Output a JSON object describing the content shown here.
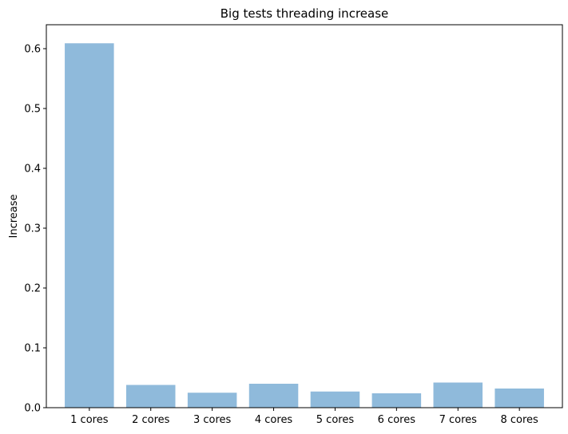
{
  "chart_data": {
    "type": "bar",
    "title": "Big tests threading increase",
    "xlabel": "",
    "ylabel": "Increase",
    "categories": [
      "1 cores",
      "2 cores",
      "3 cores",
      "4 cores",
      "5 cores",
      "6 cores",
      "7 cores",
      "8 cores"
    ],
    "values": [
      0.609,
      0.038,
      0.025,
      0.04,
      0.027,
      0.024,
      0.042,
      0.032
    ],
    "ylim": [
      0,
      0.64
    ],
    "yticks": [
      "0.0",
      "0.1",
      "0.2",
      "0.3",
      "0.4",
      "0.5",
      "0.6"
    ],
    "bar_color": "#8fbadb",
    "grid": false,
    "legend": "none"
  }
}
